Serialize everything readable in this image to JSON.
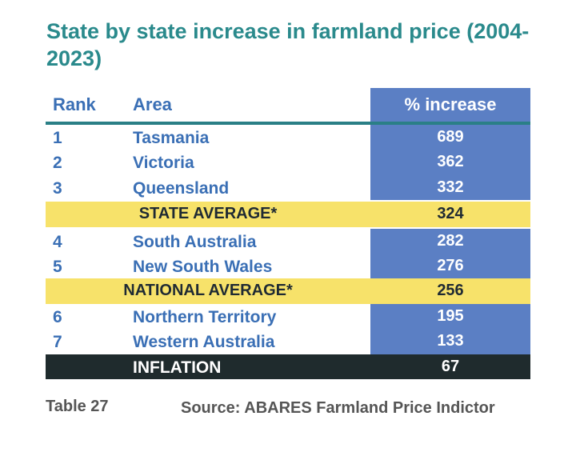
{
  "title": "State by state increase in farmland price (2004-2023)",
  "table": {
    "headers": {
      "rank": "Rank",
      "area": "Area",
      "increase": "% increase"
    },
    "rows": [
      {
        "rank": "1",
        "area": "Tasmania",
        "value": "689"
      },
      {
        "rank": "2",
        "area": "Victoria",
        "value": "362"
      },
      {
        "rank": "3",
        "area": "Queensland",
        "value": "332"
      },
      {
        "rank": "",
        "area": "STATE AVERAGE*",
        "value": "324"
      },
      {
        "rank": "4",
        "area": "South Australia",
        "value": "282"
      },
      {
        "rank": "5",
        "area": "New South Wales",
        "value": "276"
      },
      {
        "rank": "",
        "area": "NATIONAL AVERAGE*",
        "value": "256"
      },
      {
        "rank": "6",
        "area": "Northern Territory",
        "value": "195"
      },
      {
        "rank": "7",
        "area": "Western Australia",
        "value": "133"
      },
      {
        "rank": "",
        "area": "INFLATION",
        "value": "67"
      }
    ]
  },
  "caption": {
    "table_number": "Table 27",
    "source": "Source: ABARES Farmland Price Indictor"
  },
  "colors": {
    "title": "#2a8a8c",
    "text_blue": "#3a6fb5",
    "column_fill": "#5b7fc4",
    "average_fill": "#f7e26a",
    "inflation_fill": "#1f2b2d"
  }
}
